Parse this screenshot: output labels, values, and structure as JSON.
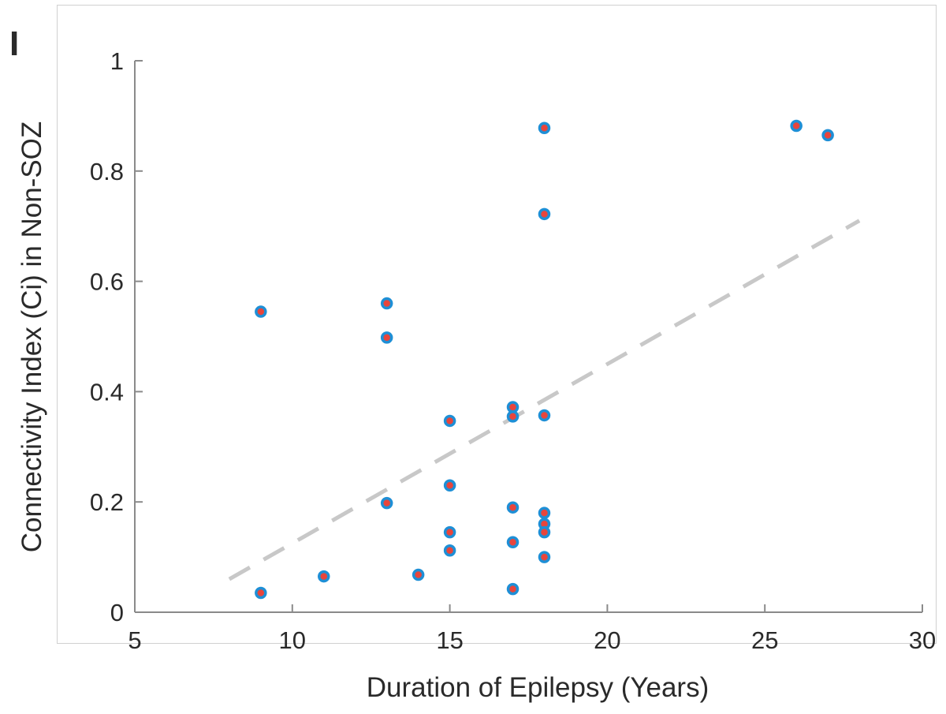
{
  "panel_label": "I",
  "chart_data": {
    "type": "scatter",
    "title": "",
    "xlabel": "Duration of Epilepsy (Years)",
    "ylabel": "Connectivity Index (Ci) in Non-SOZ",
    "xlim": [
      5,
      30
    ],
    "ylim": [
      0,
      1
    ],
    "x_ticks": [
      5,
      10,
      15,
      20,
      25,
      30
    ],
    "x_tick_labels": [
      "5",
      "10",
      "15",
      "20",
      "25",
      "30"
    ],
    "y_ticks": [
      0,
      0.2,
      0.4,
      0.6,
      0.8,
      1
    ],
    "y_tick_labels": [
      "0",
      "0.2",
      "0.4",
      "0.6",
      "0.8",
      "1"
    ],
    "grid": false,
    "series": [
      {
        "name": "patients",
        "marker_edge_color": "#1e8fd6",
        "marker_face_color": "#e8453c",
        "points": [
          {
            "x": 9,
            "y": 0.545
          },
          {
            "x": 9,
            "y": 0.035
          },
          {
            "x": 11,
            "y": 0.065
          },
          {
            "x": 13,
            "y": 0.56
          },
          {
            "x": 13,
            "y": 0.498
          },
          {
            "x": 13,
            "y": 0.198
          },
          {
            "x": 14,
            "y": 0.068
          },
          {
            "x": 15,
            "y": 0.347
          },
          {
            "x": 15,
            "y": 0.23
          },
          {
            "x": 15,
            "y": 0.145
          },
          {
            "x": 15,
            "y": 0.112
          },
          {
            "x": 17,
            "y": 0.372
          },
          {
            "x": 17,
            "y": 0.355
          },
          {
            "x": 17,
            "y": 0.19
          },
          {
            "x": 17,
            "y": 0.127
          },
          {
            "x": 17,
            "y": 0.042
          },
          {
            "x": 18,
            "y": 0.878
          },
          {
            "x": 18,
            "y": 0.722
          },
          {
            "x": 18,
            "y": 0.357
          },
          {
            "x": 18,
            "y": 0.18
          },
          {
            "x": 18,
            "y": 0.16
          },
          {
            "x": 18,
            "y": 0.145
          },
          {
            "x": 18,
            "y": 0.1
          },
          {
            "x": 26,
            "y": 0.882
          },
          {
            "x": 27,
            "y": 0.865
          }
        ]
      }
    ],
    "fit_line": {
      "name": "linear fit",
      "style": "dashed",
      "color": "#c8c8c8",
      "x": [
        8,
        28
      ],
      "y": [
        0.06,
        0.71
      ]
    }
  }
}
